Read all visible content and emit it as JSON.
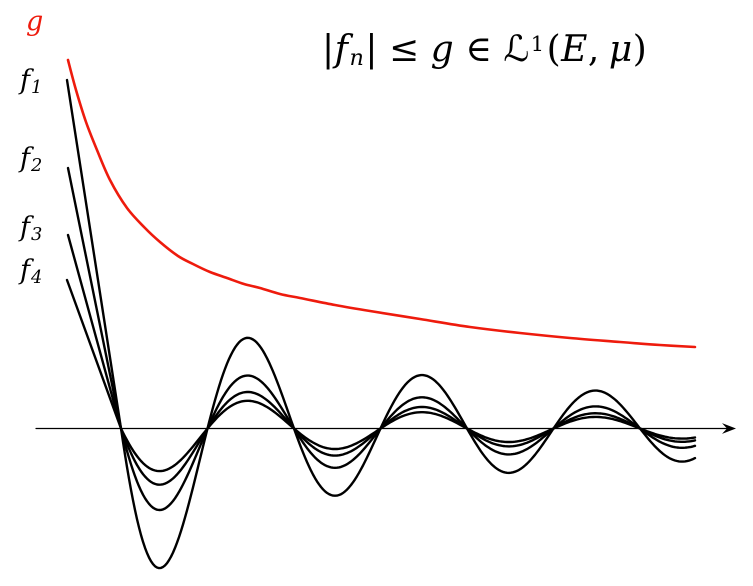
{
  "figure": {
    "formula": {
      "bar_left": "|",
      "f": "f",
      "sub_n": "n",
      "bar_right": "|",
      "leq": "≤",
      "g": "g",
      "element_of": "∈",
      "script_L": "ℒ",
      "sup_1": "1",
      "paren_open": "(",
      "E": "E",
      "comma": ",",
      "mu": "μ",
      "paren_close": ")"
    },
    "labels": {
      "g": {
        "text": "g",
        "color": "#ee1b0d"
      },
      "f": [
        {
          "base": "f",
          "sub": "1"
        },
        {
          "base": "f",
          "sub": "2"
        },
        {
          "base": "f",
          "sub": "3"
        },
        {
          "base": "f",
          "sub": "4"
        }
      ]
    }
  },
  "chart_data": {
    "type": "line",
    "title": "|f_n| ≤ g ∈ ℒ¹(E, μ)",
    "xlabel": "",
    "ylabel": "",
    "grid": false,
    "legend_position": "left-margin-labels",
    "axis": {
      "y": 428.5,
      "x_start": 36,
      "arrow_tip_x": 736,
      "color": "#000000"
    },
    "g_curve": {
      "name": "g",
      "color": "#ee1b0d",
      "stroke_width": 2.6,
      "points": [
        [
          68,
          60
        ],
        [
          76,
          90
        ],
        [
          86,
          122
        ],
        [
          97,
          150
        ],
        [
          110,
          180
        ],
        [
          127,
          208
        ],
        [
          145,
          228
        ],
        [
          160,
          242
        ],
        [
          178,
          256
        ],
        [
          193,
          264
        ],
        [
          210,
          272
        ],
        [
          227,
          278
        ],
        [
          244,
          284
        ],
        [
          260,
          288
        ],
        [
          280,
          294
        ],
        [
          300,
          298
        ],
        [
          335,
          305
        ],
        [
          370,
          311
        ],
        [
          420,
          319
        ],
        [
          470,
          327
        ],
        [
          520,
          333
        ],
        [
          570,
          338
        ],
        [
          620,
          342
        ],
        [
          660,
          345
        ],
        [
          695,
          347
        ]
      ]
    },
    "f_curves": {
      "color": "#000000",
      "stroke_width": 2.4,
      "x_zero_first": 121,
      "half_period": 86.5,
      "x_end": 695,
      "zero_crossings_x": [
        121,
        207.5,
        294,
        380.5,
        467,
        553.5,
        640
      ],
      "amplitude_model": "y(x) = axis_y + (c/x)*sin(pi*(x-121)/86.5) for x>=121; straight segment from start point to (121, axis_y) for x<121",
      "series": [
        {
          "name": "f1",
          "c": 22600,
          "start": [
            67,
            80
          ]
        },
        {
          "name": "f2",
          "c": 13200,
          "start": [
            68,
            168
          ]
        },
        {
          "name": "f3",
          "c": 9100,
          "start": [
            68,
            235
          ]
        },
        {
          "name": "f4",
          "c": 6900,
          "start": [
            67,
            280
          ]
        }
      ]
    }
  }
}
